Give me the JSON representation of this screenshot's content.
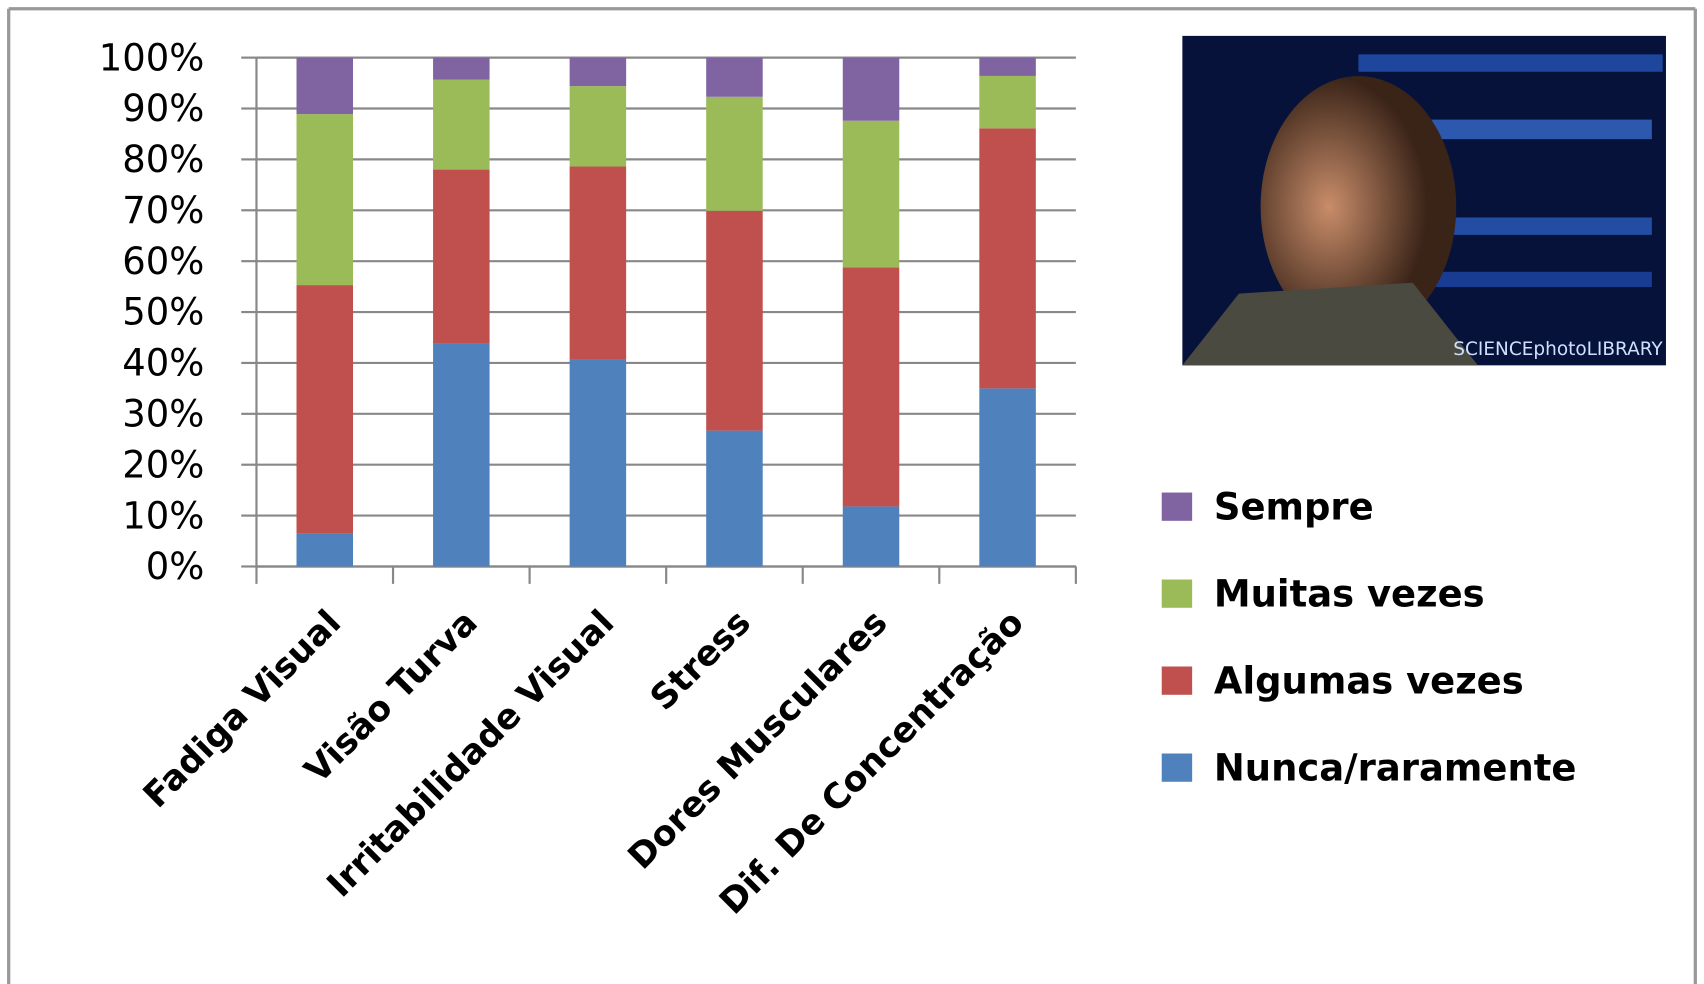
{
  "chart_data": {
    "type": "stacked_bar",
    "categories": [
      "Fadiga Visual",
      "Visão Turva",
      "Irritabilidade Visual",
      "Stress",
      "Dores Musculares",
      "Dif. De Concentração"
    ],
    "series": [
      {
        "name": "Nunca/raramente",
        "color": "#4f81bd",
        "values": [
          6.5,
          43.8,
          40.6,
          26.7,
          11.8,
          35
        ]
      },
      {
        "name": "Algumas vezes",
        "color": "#c0504d",
        "values": [
          48.8,
          34.2,
          38,
          43.2,
          47,
          51.1
        ]
      },
      {
        "name": "Muitas vezes",
        "color": "#9bbb59",
        "values": [
          33.6,
          17.7,
          15.8,
          22.4,
          28.8,
          10.3
        ]
      },
      {
        "name": "Sempre",
        "color": "#8064a2",
        "values": [
          11.1,
          4.3,
          5.6,
          7.7,
          12.4,
          3.6
        ]
      }
    ],
    "ylim": [
      0,
      100
    ],
    "yticks": [
      {
        "value": 0,
        "label": "0%"
      },
      {
        "value": 10,
        "label": "10%"
      },
      {
        "value": 20,
        "label": "20%"
      },
      {
        "value": 30,
        "label": "30%"
      },
      {
        "value": 40,
        "label": "40%"
      },
      {
        "value": 50,
        "label": "50%"
      },
      {
        "value": 60,
        "label": "60%"
      },
      {
        "value": 70,
        "label": "70%"
      },
      {
        "value": 80,
        "label": "80%"
      },
      {
        "value": 90,
        "label": "90%"
      },
      {
        "value": 100,
        "label": "100%"
      }
    ],
    "grid": true,
    "legend": "right",
    "image_credit": "SCIENCEphotoLIBRARY"
  }
}
